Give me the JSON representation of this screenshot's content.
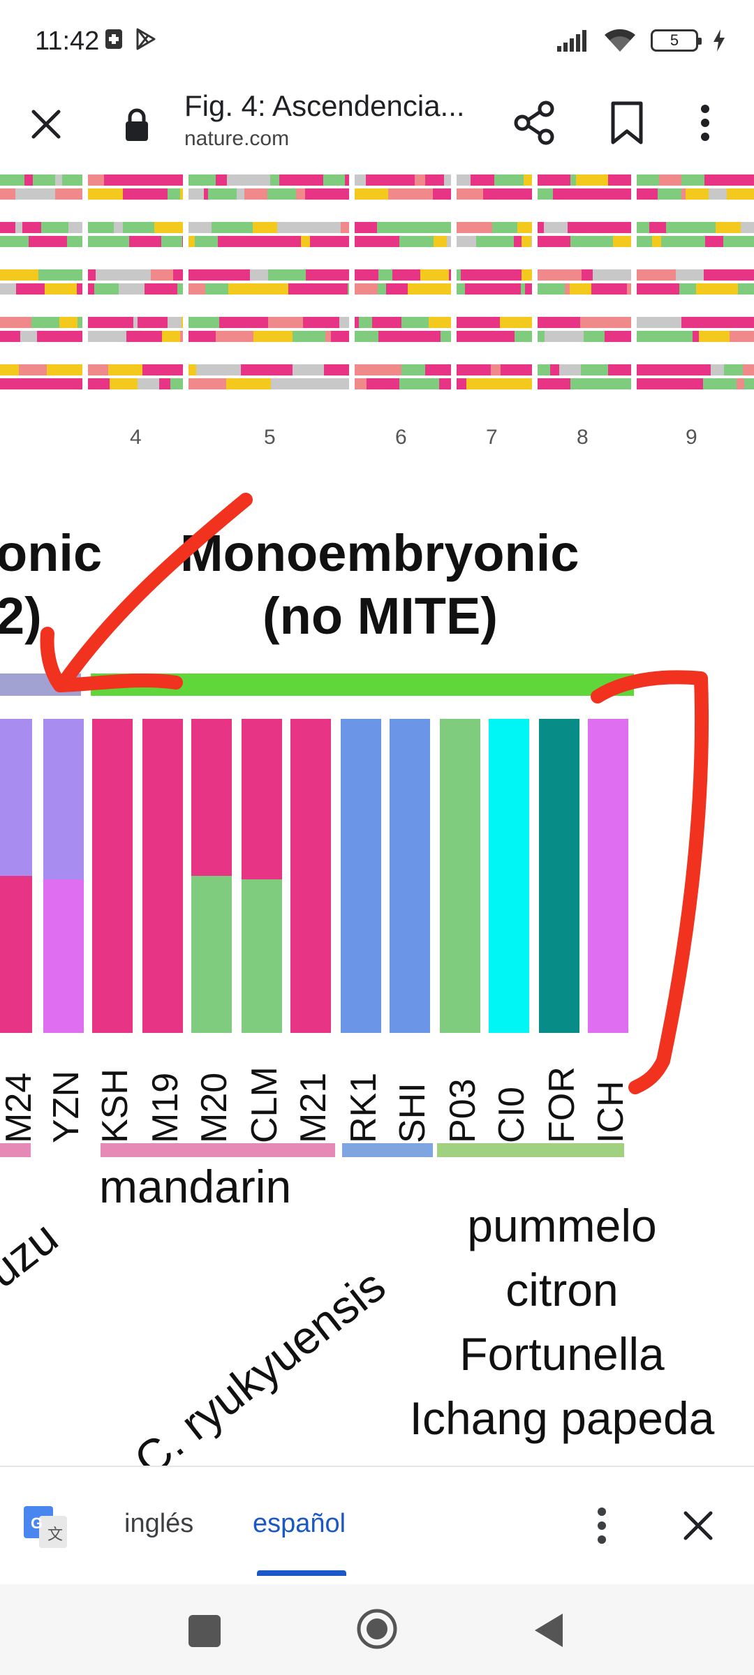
{
  "status_bar": {
    "time": "11:42",
    "battery_level": "5",
    "icons": [
      "sim-icon",
      "play-store-icon",
      "signal-icon",
      "wifi-icon",
      "battery-icon",
      "charging-icon"
    ]
  },
  "top_bar": {
    "title": "Fig. 4: Ascendencia...",
    "domain": "nature.com",
    "icons": [
      "close-icon",
      "lock-icon",
      "share-icon",
      "bookmark-icon",
      "more-vert-icon"
    ]
  },
  "figure": {
    "axis_numbers": [
      "4",
      "5",
      "6",
      "7",
      "8",
      "9"
    ],
    "heading_left_line1": "onic",
    "heading_left_line2": "2)",
    "heading_main_line1": "Monoembryonic",
    "heading_main_line2": "(no MITE)",
    "bar_labels": [
      "M24",
      "YZN",
      "KSH",
      "M19",
      "M20",
      "CLM",
      "M21",
      "RK1",
      "SHI",
      "P03",
      "CI0",
      "FOR",
      "ICH"
    ],
    "group_labels": {
      "yuzu": "yuzu",
      "mandarin": "mandarin",
      "ryukyuensis": "C. ryukyuensis",
      "others": [
        "pummelo",
        "citron",
        "Fortunella",
        "Ichang papeda"
      ]
    },
    "colors": {
      "magenta": "#e73485",
      "lavender": "#a98cf0",
      "violet": "#e06ef0",
      "green": "#7fcc7f",
      "blue": "#6b96e8",
      "cyan": "#00f5f5",
      "teal": "#078c88",
      "bright_green": "#5fd63a",
      "annotation_red": "#f0321e"
    }
  },
  "translate_bar": {
    "from_lang": "inglés",
    "to_lang": "español"
  }
}
